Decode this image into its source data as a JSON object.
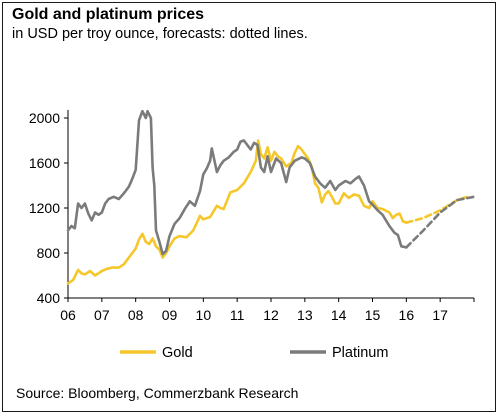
{
  "title": "Gold and platinum prices",
  "subtitle": "in USD per troy ounce, forecasts: dotted lines.",
  "source": "Source: Bloomberg, Commerzbank Research",
  "chart_data": {
    "type": "line",
    "title": "Gold and platinum prices",
    "subtitle": "in USD per troy ounce, forecasts: dotted lines.",
    "xlabel": "",
    "ylabel": "",
    "xlim": [
      2006,
      2018
    ],
    "ylim": [
      400,
      2000
    ],
    "yticks": [
      400,
      800,
      1200,
      1600,
      2000
    ],
    "xtick_labels": [
      "06",
      "07",
      "08",
      "09",
      "10",
      "11",
      "12",
      "13",
      "14",
      "15",
      "16",
      "17"
    ],
    "grid": false,
    "legend": "bottom",
    "series": [
      {
        "name": "Gold",
        "color": "#f5c72a",
        "actual": [
          [
            2006.0,
            530
          ],
          [
            2006.15,
            560
          ],
          [
            2006.3,
            650
          ],
          [
            2006.4,
            620
          ],
          [
            2006.5,
            610
          ],
          [
            2006.65,
            640
          ],
          [
            2006.8,
            600
          ],
          [
            2006.9,
            620
          ],
          [
            2007.0,
            640
          ],
          [
            2007.15,
            660
          ],
          [
            2007.3,
            670
          ],
          [
            2007.5,
            670
          ],
          [
            2007.65,
            700
          ],
          [
            2007.8,
            760
          ],
          [
            2008.0,
            840
          ],
          [
            2008.1,
            920
          ],
          [
            2008.2,
            970
          ],
          [
            2008.3,
            900
          ],
          [
            2008.4,
            880
          ],
          [
            2008.5,
            930
          ],
          [
            2008.6,
            860
          ],
          [
            2008.7,
            830
          ],
          [
            2008.8,
            760
          ],
          [
            2008.9,
            800
          ],
          [
            2009.0,
            860
          ],
          [
            2009.15,
            930
          ],
          [
            2009.3,
            950
          ],
          [
            2009.5,
            940
          ],
          [
            2009.7,
            1000
          ],
          [
            2009.9,
            1130
          ],
          [
            2010.0,
            1100
          ],
          [
            2010.2,
            1120
          ],
          [
            2010.4,
            1220
          ],
          [
            2010.5,
            1200
          ],
          [
            2010.6,
            1190
          ],
          [
            2010.8,
            1340
          ],
          [
            2011.0,
            1360
          ],
          [
            2011.2,
            1420
          ],
          [
            2011.4,
            1520
          ],
          [
            2011.55,
            1620
          ],
          [
            2011.62,
            1800
          ],
          [
            2011.7,
            1680
          ],
          [
            2011.8,
            1640
          ],
          [
            2011.9,
            1740
          ],
          [
            2012.0,
            1620
          ],
          [
            2012.1,
            1700
          ],
          [
            2012.2,
            1660
          ],
          [
            2012.3,
            1640
          ],
          [
            2012.45,
            1570
          ],
          [
            2012.6,
            1600
          ],
          [
            2012.7,
            1690
          ],
          [
            2012.8,
            1750
          ],
          [
            2012.9,
            1720
          ],
          [
            2013.0,
            1680
          ],
          [
            2013.1,
            1640
          ],
          [
            2013.2,
            1570
          ],
          [
            2013.3,
            1420
          ],
          [
            2013.4,
            1380
          ],
          [
            2013.5,
            1250
          ],
          [
            2013.6,
            1320
          ],
          [
            2013.7,
            1350
          ],
          [
            2013.8,
            1300
          ],
          [
            2013.9,
            1240
          ],
          [
            2014.0,
            1240
          ],
          [
            2014.15,
            1330
          ],
          [
            2014.3,
            1290
          ],
          [
            2014.45,
            1320
          ],
          [
            2014.6,
            1310
          ],
          [
            2014.75,
            1220
          ],
          [
            2014.9,
            1200
          ],
          [
            2015.0,
            1260
          ],
          [
            2015.15,
            1200
          ],
          [
            2015.3,
            1190
          ],
          [
            2015.5,
            1160
          ],
          [
            2015.6,
            1110
          ],
          [
            2015.7,
            1140
          ],
          [
            2015.8,
            1150
          ],
          [
            2015.9,
            1080
          ],
          [
            2016.0,
            1070
          ]
        ],
        "forecast": [
          [
            2016.0,
            1070
          ],
          [
            2016.5,
            1110
          ],
          [
            2017.0,
            1180
          ],
          [
            2017.5,
            1270
          ],
          [
            2017.8,
            1300
          ]
        ]
      },
      {
        "name": "Platinum",
        "color": "#7b7b7b",
        "actual": [
          [
            2006.0,
            1000
          ],
          [
            2006.1,
            1040
          ],
          [
            2006.2,
            1020
          ],
          [
            2006.3,
            1240
          ],
          [
            2006.4,
            1200
          ],
          [
            2006.5,
            1240
          ],
          [
            2006.6,
            1150
          ],
          [
            2006.7,
            1090
          ],
          [
            2006.8,
            1160
          ],
          [
            2006.9,
            1140
          ],
          [
            2007.0,
            1160
          ],
          [
            2007.1,
            1240
          ],
          [
            2007.2,
            1280
          ],
          [
            2007.35,
            1300
          ],
          [
            2007.5,
            1280
          ],
          [
            2007.65,
            1330
          ],
          [
            2007.8,
            1390
          ],
          [
            2007.9,
            1460
          ],
          [
            2008.0,
            1540
          ],
          [
            2008.1,
            1980
          ],
          [
            2008.2,
            2060
          ],
          [
            2008.3,
            2000
          ],
          [
            2008.35,
            2060
          ],
          [
            2008.45,
            2000
          ],
          [
            2008.5,
            1560
          ],
          [
            2008.55,
            1400
          ],
          [
            2008.6,
            1000
          ],
          [
            2008.7,
            900
          ],
          [
            2008.8,
            790
          ],
          [
            2008.9,
            820
          ],
          [
            2009.0,
            950
          ],
          [
            2009.15,
            1060
          ],
          [
            2009.3,
            1110
          ],
          [
            2009.45,
            1190
          ],
          [
            2009.6,
            1260
          ],
          [
            2009.75,
            1220
          ],
          [
            2009.9,
            1350
          ],
          [
            2010.0,
            1500
          ],
          [
            2010.1,
            1550
          ],
          [
            2010.2,
            1620
          ],
          [
            2010.25,
            1730
          ],
          [
            2010.4,
            1520
          ],
          [
            2010.5,
            1580
          ],
          [
            2010.6,
            1620
          ],
          [
            2010.75,
            1650
          ],
          [
            2010.9,
            1700
          ],
          [
            2011.0,
            1720
          ],
          [
            2011.1,
            1790
          ],
          [
            2011.2,
            1800
          ],
          [
            2011.3,
            1760
          ],
          [
            2011.4,
            1720
          ],
          [
            2011.5,
            1780
          ],
          [
            2011.6,
            1760
          ],
          [
            2011.7,
            1560
          ],
          [
            2011.8,
            1520
          ],
          [
            2011.9,
            1660
          ],
          [
            2012.0,
            1520
          ],
          [
            2012.15,
            1640
          ],
          [
            2012.3,
            1600
          ],
          [
            2012.45,
            1430
          ],
          [
            2012.55,
            1560
          ],
          [
            2012.7,
            1620
          ],
          [
            2012.9,
            1650
          ],
          [
            2013.0,
            1640
          ],
          [
            2013.15,
            1600
          ],
          [
            2013.3,
            1480
          ],
          [
            2013.45,
            1420
          ],
          [
            2013.6,
            1380
          ],
          [
            2013.75,
            1440
          ],
          [
            2013.9,
            1360
          ],
          [
            2014.0,
            1400
          ],
          [
            2014.2,
            1440
          ],
          [
            2014.35,
            1420
          ],
          [
            2014.5,
            1460
          ],
          [
            2014.6,
            1480
          ],
          [
            2014.75,
            1400
          ],
          [
            2014.9,
            1260
          ],
          [
            2015.0,
            1230
          ],
          [
            2015.15,
            1180
          ],
          [
            2015.3,
            1140
          ],
          [
            2015.5,
            1040
          ],
          [
            2015.65,
            980
          ],
          [
            2015.75,
            960
          ],
          [
            2015.85,
            860
          ],
          [
            2016.0,
            850
          ]
        ],
        "forecast": [
          [
            2016.0,
            850
          ],
          [
            2016.5,
            1000
          ],
          [
            2017.0,
            1160
          ],
          [
            2017.5,
            1270
          ],
          [
            2018.0,
            1300
          ]
        ]
      }
    ]
  }
}
